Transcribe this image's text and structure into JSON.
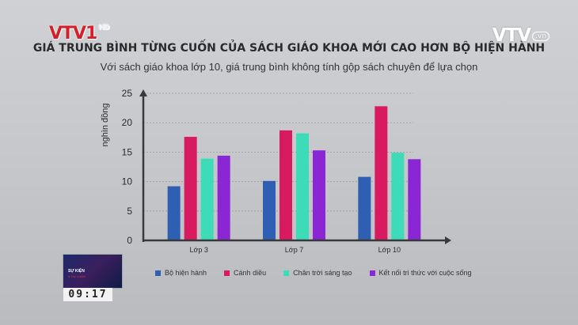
{
  "header": {
    "logo_left": "VTV1",
    "logo_left_suffix": "HD",
    "logo_right": "VTV",
    "logo_right_suffix": ".vn"
  },
  "overlay": {
    "thumbnail_line1": "SỰ KIỆN",
    "thumbnail_line2": "& DƯ LUẬN",
    "clock": "09:17"
  },
  "colors": {
    "series": [
      "#2f5fb3",
      "#d81b60",
      "#3ddbb8",
      "#8a26d4"
    ],
    "axis": "#3a3a3a",
    "grid": "#9a9a9a"
  },
  "chart_data": {
    "type": "bar",
    "title": "GIÁ TRUNG BÌNH TỪNG CUỐN CỦA SÁCH GIÁO KHOA MỚI CAO HƠN BỘ HIỆN HÀNH",
    "subtitle": "Với sách giáo khoa lớp 10, giá trung bình không tính gộp sách chuyên để lựa chọn",
    "ylabel": "nghìn đồng",
    "xlabel": "",
    "ylim": [
      0,
      25
    ],
    "yticks": [
      0,
      5,
      10,
      15,
      20,
      25
    ],
    "grid": true,
    "legend_position": "bottom",
    "categories": [
      "Lớp 3",
      "Lớp 7",
      "Lớp 10"
    ],
    "series": [
      {
        "name": "Bộ hiện hành",
        "values": [
          9.2,
          10.1,
          10.8
        ]
      },
      {
        "name": "Cánh diều",
        "values": [
          17.6,
          18.7,
          22.8
        ]
      },
      {
        "name": "Chân trời sáng tạo",
        "values": [
          13.9,
          18.2,
          14.9
        ]
      },
      {
        "name": "Kết nối tri thức với cuộc sống",
        "values": [
          14.4,
          15.3,
          13.8
        ]
      }
    ]
  }
}
